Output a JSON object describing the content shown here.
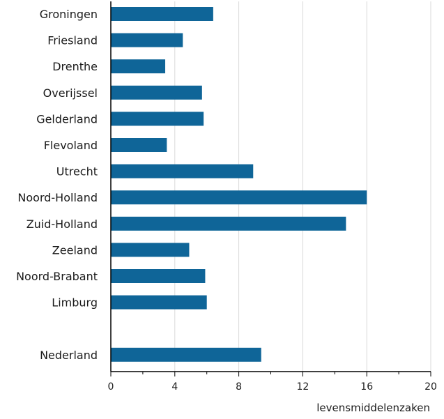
{
  "chart_data": {
    "type": "bar",
    "orientation": "horizontal",
    "title": "",
    "xlabel": "levensmiddelenzaken",
    "ylabel": "",
    "categories": [
      "Groningen",
      "Friesland",
      "Drenthe",
      "Overijssel",
      "Gelderland",
      "Flevoland",
      "Utrecht",
      "Noord-Holland",
      "Zuid-Holland",
      "Zeeland",
      "Noord-Brabant",
      "Limburg",
      "",
      "Nederland"
    ],
    "values": [
      6.4,
      4.5,
      3.4,
      5.7,
      5.8,
      3.5,
      8.9,
      16.0,
      14.7,
      4.9,
      5.9,
      6.0,
      null,
      9.4
    ],
    "xlim": [
      0,
      20
    ],
    "xticks": [
      0,
      4,
      8,
      12,
      16,
      20
    ],
    "grid": "vertical",
    "legend": "none",
    "bar_color": "#0f6598"
  }
}
